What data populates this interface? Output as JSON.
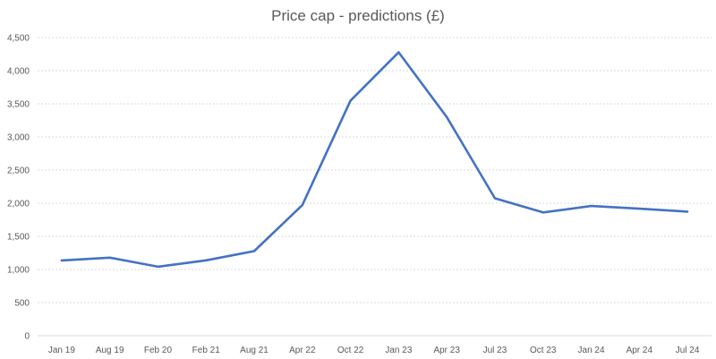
{
  "chart_data": {
    "type": "line",
    "title": "Price cap - predictions (£)",
    "xlabel": "",
    "ylabel": "",
    "categories": [
      "Jan 19",
      "Aug 19",
      "Feb 20",
      "Feb 21",
      "Aug 21",
      "Apr 22",
      "Oct 22",
      "Jan 23",
      "Apr 23",
      "Jul 23",
      "Oct 23",
      "Jan 24",
      "Apr 24",
      "Jul 24"
    ],
    "series": [
      {
        "name": "",
        "color": "#4472c4",
        "values": [
          1137,
          1179,
          1042,
          1138,
          1277,
          1971,
          3549,
          4279,
          3300,
          2074,
          1861,
          1958,
          1918,
          1873
        ]
      }
    ],
    "ylim": [
      0,
      4500
    ],
    "yticks": [
      0,
      500,
      1000,
      1500,
      2000,
      2500,
      3000,
      3500,
      4000,
      4500
    ],
    "ytick_labels": [
      "0",
      "500",
      "1,000",
      "1,500",
      "2,000",
      "2,500",
      "3,000",
      "3,500",
      "4,000",
      "4,500"
    ],
    "grid": true,
    "legend": "none"
  }
}
